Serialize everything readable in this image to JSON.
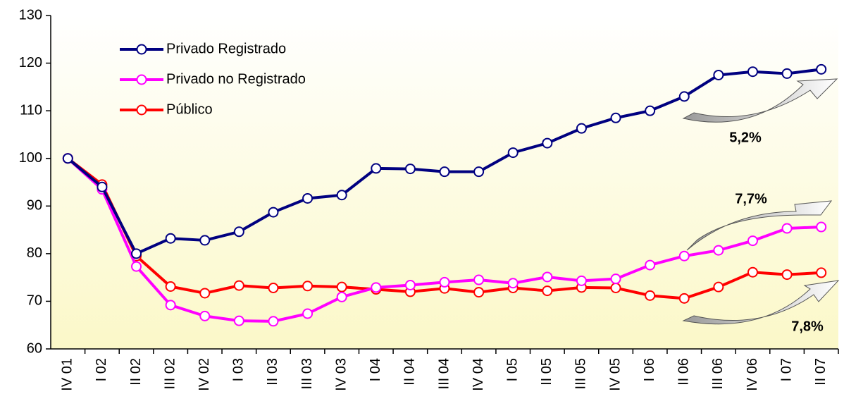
{
  "chart_data": {
    "type": "line",
    "categories": [
      "IV 01",
      "I 02",
      "II 02",
      "III 02",
      "IV 02",
      "I 03",
      "II 03",
      "III 03",
      "IV 03",
      "I 04",
      "II 04",
      "III 04",
      "IV 04",
      "I 05",
      "II 05",
      "III 05",
      "IV 05",
      "I 06",
      "II 06",
      "III 06",
      "IV 06",
      "I 07",
      "II 07"
    ],
    "series": [
      {
        "name": "Privado Registrado",
        "color": "#000080",
        "values": [
          100,
          94,
          80,
          83.2,
          82.8,
          84.6,
          88.7,
          91.6,
          92.3,
          97.9,
          97.8,
          97.2,
          97.2,
          101.2,
          103.2,
          106.3,
          108.5,
          110,
          113,
          117.5,
          118.2,
          117.8,
          118.7
        ]
      },
      {
        "name": "Privado no Registrado",
        "color": "#ff00ff",
        "values": [
          100,
          93.5,
          77.3,
          69.2,
          66.9,
          65.9,
          65.8,
          67.4,
          70.9,
          72.9,
          73.4,
          74,
          74.5,
          73.8,
          75.1,
          74.3,
          74.7,
          77.6,
          79.5,
          80.7,
          82.7,
          85.3,
          85.6
        ]
      },
      {
        "name": "Público",
        "color": "#ff0000",
        "values": [
          100,
          94.5,
          79.5,
          73.1,
          71.7,
          73.3,
          72.8,
          73.2,
          73,
          72.5,
          72,
          72.7,
          71.9,
          72.8,
          72.2,
          72.9,
          72.8,
          71.2,
          70.6,
          73,
          76.1,
          75.6,
          76
        ]
      }
    ],
    "annotations": [
      "5,2%",
      "7,7%",
      "7,8%"
    ],
    "ylim": [
      60,
      130
    ],
    "yticks": [
      60,
      70,
      80,
      90,
      100,
      110,
      120,
      130
    ],
    "legend": "upper left"
  }
}
